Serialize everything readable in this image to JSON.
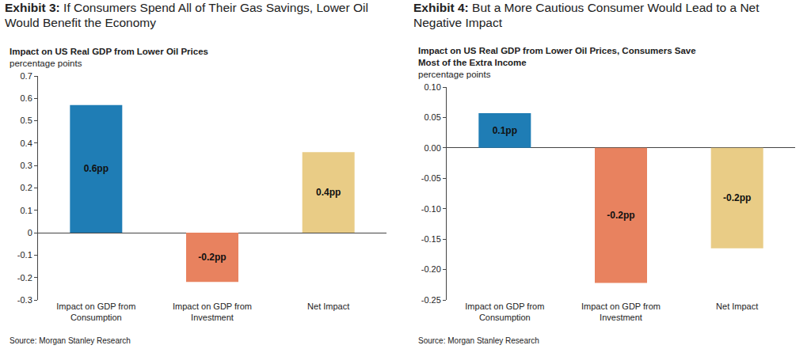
{
  "chart_data": [
    {
      "type": "bar",
      "title": "Exhibit 3: If Consumers Spend All of Their Gas Savings, Lower Oil Would Benefit the Economy",
      "subtitle": "Impact on US Real GDP from Lower Oil Prices",
      "y_label": "percentage points",
      "source": "Source: Morgan Stanley Research",
      "categories": [
        "Impact on GDP from Consumption",
        "Impact on GDP from Investment",
        "Net Impact"
      ],
      "values": [
        0.57,
        -0.22,
        0.36
      ],
      "value_labels": [
        "0.6pp",
        "-0.2pp",
        "0.4pp"
      ],
      "colors": [
        "#1f7db5",
        "#e8825f",
        "#e9cc86"
      ],
      "ylim": [
        -0.3,
        0.7
      ],
      "yticks": [
        -0.3,
        -0.2,
        -0.1,
        0,
        0.1,
        0.2,
        0.3,
        0.4,
        0.5,
        0.6,
        0.7
      ],
      "grid": false,
      "data_labels": true
    },
    {
      "type": "bar",
      "title": "Exhibit 4: But a More Cautious Consumer Would Lead to a Net Negative Impact",
      "subtitle": "Impact on US Real GDP from Lower Oil Prices, Consumers Save Most of the Extra Income",
      "y_label": "percentage points",
      "source": "Source: Morgan Stanley Research",
      "categories": [
        "Impact on GDP from Consumption",
        "Impact on GDP from Investment",
        "Net Impact"
      ],
      "values": [
        0.057,
        -0.222,
        -0.165
      ],
      "value_labels": [
        "0.1pp",
        "-0.2pp",
        "-0.2pp"
      ],
      "colors": [
        "#1f7db5",
        "#e8825f",
        "#e9cc86"
      ],
      "ylim": [
        -0.25,
        0.1
      ],
      "yticks": [
        {
          "value": -0.25,
          "label": "-0.25"
        },
        {
          "value": -0.2,
          "label": "-0.20"
        },
        {
          "value": -0.15,
          "label": "-0.15"
        },
        {
          "value": -0.1,
          "label": "-0.10"
        },
        {
          "value": -0.05,
          "label": "-0.05"
        },
        {
          "value": 0,
          "label": "0.00"
        },
        {
          "value": 0.05,
          "label": "0.05"
        },
        {
          "value": 0.1,
          "label": "0.10"
        }
      ],
      "grid": false,
      "data_labels": true
    }
  ]
}
